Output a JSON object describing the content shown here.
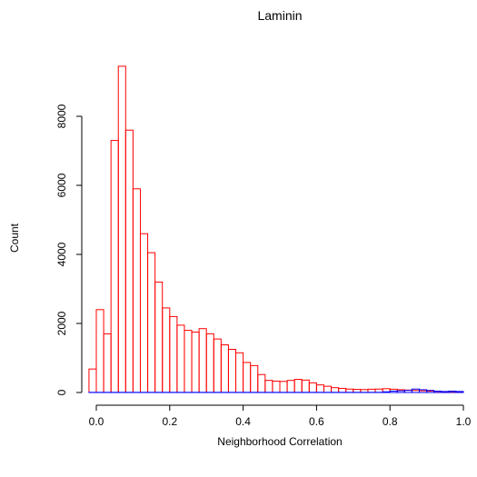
{
  "chart_data": {
    "type": "bar",
    "title": "Laminin",
    "xlabel": "Neighborhood Correlation",
    "ylabel": "Count",
    "xlim": [
      -0.04,
      1.0
    ],
    "ylim": [
      0,
      9500
    ],
    "bin_width": 0.02,
    "x_ticks": [
      0.0,
      0.2,
      0.4,
      0.6,
      0.8,
      1.0
    ],
    "x_tick_labels": [
      "0.0",
      "0.2",
      "0.4",
      "0.6",
      "0.8",
      "1.0"
    ],
    "y_ticks": [
      0,
      2000,
      4000,
      6000,
      8000
    ],
    "y_tick_labels": [
      "0",
      "2000",
      "4000",
      "6000",
      "8000"
    ],
    "grid": false,
    "series": [
      {
        "color": "#ff0000",
        "bin_starts": [
          -0.02,
          0.0,
          0.02,
          0.04,
          0.06,
          0.08,
          0.1,
          0.12,
          0.14,
          0.16,
          0.18,
          0.2,
          0.22,
          0.24,
          0.26,
          0.28,
          0.3,
          0.32,
          0.34,
          0.36,
          0.38,
          0.4,
          0.42,
          0.44,
          0.46,
          0.48,
          0.5,
          0.52,
          0.54,
          0.56,
          0.58,
          0.6,
          0.62,
          0.64,
          0.66,
          0.68,
          0.7,
          0.72,
          0.74,
          0.76,
          0.78,
          0.8,
          0.82,
          0.84,
          0.86,
          0.88,
          0.9,
          0.92,
          0.94,
          0.96,
          0.98
        ],
        "values": [
          680,
          2400,
          1700,
          7300,
          9450,
          7600,
          5900,
          4600,
          4050,
          3200,
          2450,
          2200,
          1950,
          1800,
          1750,
          1850,
          1700,
          1550,
          1380,
          1250,
          1150,
          870,
          780,
          520,
          350,
          330,
          320,
          350,
          380,
          360,
          280,
          220,
          180,
          140,
          120,
          100,
          90,
          85,
          95,
          100,
          110,
          95,
          80,
          70,
          60,
          50,
          40,
          30,
          25,
          20,
          15
        ]
      },
      {
        "color": "#0000ff",
        "bin_starts": [
          -0.02,
          0.0,
          0.02,
          0.04,
          0.06,
          0.08,
          0.1,
          0.12,
          0.14,
          0.16,
          0.18,
          0.2,
          0.22,
          0.24,
          0.26,
          0.28,
          0.3,
          0.32,
          0.34,
          0.36,
          0.38,
          0.4,
          0.42,
          0.44,
          0.46,
          0.48,
          0.5,
          0.52,
          0.54,
          0.56,
          0.58,
          0.6,
          0.62,
          0.64,
          0.66,
          0.68,
          0.7,
          0.72,
          0.74,
          0.76,
          0.78,
          0.8,
          0.82,
          0.84,
          0.86,
          0.88,
          0.9,
          0.92,
          0.94,
          0.96,
          0.98
        ],
        "values": [
          5,
          5,
          5,
          5,
          5,
          5,
          5,
          5,
          5,
          5,
          5,
          5,
          5,
          5,
          5,
          5,
          5,
          5,
          5,
          5,
          5,
          5,
          5,
          5,
          5,
          5,
          5,
          5,
          5,
          5,
          5,
          5,
          5,
          5,
          5,
          5,
          5,
          5,
          5,
          5,
          20,
          40,
          50,
          60,
          100,
          80,
          60,
          40,
          30,
          40,
          30
        ]
      }
    ]
  }
}
